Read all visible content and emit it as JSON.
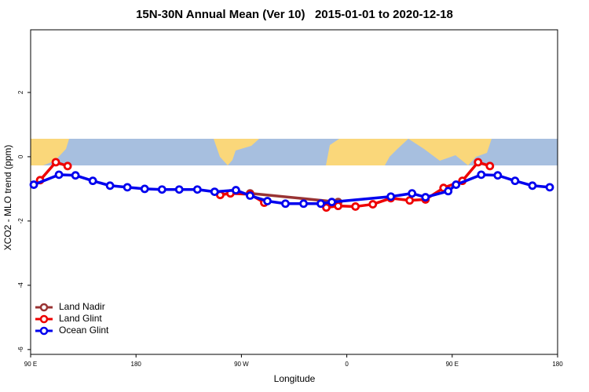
{
  "chart_data": {
    "type": "line",
    "title": "15N-30N Annual Mean (Ver 10)   2015-01-01 to 2020-12-18",
    "x_label": "Longitude",
    "y_label": "XCO2 - MLO trend (ppm)",
    "xlim": [
      90,
      540
    ],
    "xticks": [
      {
        "value": 90,
        "label": "90 E"
      },
      180,
      {
        "value": 270,
        "label": "90 W"
      },
      {
        "value": 360,
        "label": "0"
      },
      {
        "value": 450,
        "label": "90 E"
      },
      {
        "value": 540,
        "label": "180"
      }
    ],
    "ylim": [
      -6.15,
      3.95
    ],
    "yticks": [
      -6,
      -4,
      -2,
      0,
      2
    ],
    "legend": "bottom-left",
    "series": [
      {
        "name": "Land Nadir",
        "color": "#993333",
        "x": [
          277.4,
          352.6
        ],
        "values": [
          -1.14,
          -1.41
        ]
      },
      {
        "name": "Land Glint",
        "color": "#ee0000",
        "x": [
          98.1,
          111.5,
          121.6,
          null,
          251.9,
          260.6,
          277.4,
          289.5,
          null,
          342.5,
          352.6,
          367.4,
          382.2,
          397.6,
          413.7,
          427.2,
          442.6,
          458.7,
          472.1,
          482.2
        ],
        "values": [
          -0.73,
          -0.17,
          -0.29,
          null,
          -1.19,
          -1.14,
          -1.17,
          -1.43,
          null,
          -1.58,
          -1.53,
          -1.55,
          -1.48,
          -1.29,
          -1.36,
          -1.33,
          -0.97,
          -0.75,
          -0.17,
          -0.29
        ]
      },
      {
        "name": "Ocean Glint",
        "color": "#0000ee",
        "x": [
          92.7,
          114.2,
          128.3,
          143.1,
          157.8,
          172.6,
          187.4,
          202.2,
          216.9,
          232.4,
          247.1,
          265.3,
          277.4,
          292.2,
          307.6,
          323.1,
          337.8,
          347.2,
          397.6,
          415.7,
          427.2,
          446.6,
          453.3,
          474.8,
          488.9,
          503.7,
          518.5,
          533.3
        ],
        "values": [
          -0.87,
          -0.56,
          -0.58,
          -0.75,
          -0.9,
          -0.95,
          -1.0,
          -1.02,
          -1.02,
          -1.02,
          -1.09,
          -1.04,
          -1.21,
          -1.38,
          -1.46,
          -1.46,
          -1.46,
          -1.41,
          -1.24,
          -1.14,
          -1.26,
          -1.07,
          -0.87,
          -0.56,
          -0.58,
          -0.75,
          -0.9,
          -0.95
        ]
      }
    ]
  }
}
